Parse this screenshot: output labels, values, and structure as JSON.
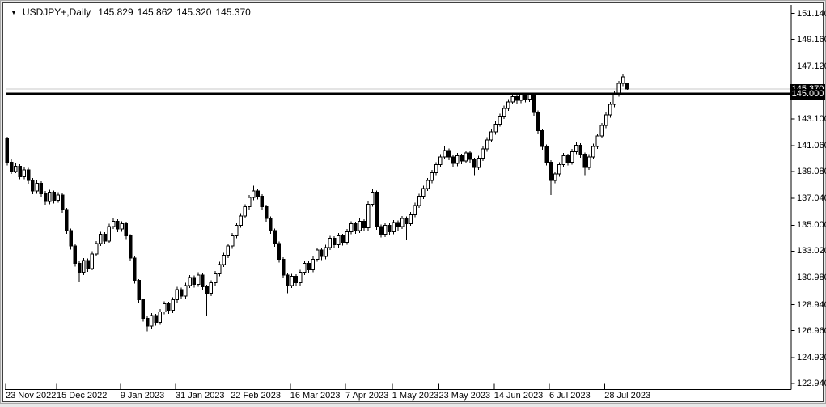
{
  "window": {
    "dropdown_icon": "▼",
    "symbol_timeframe": "USDJPY+,Daily",
    "open": "145.829",
    "high": "145.862",
    "low": "145.320",
    "close": "145.370"
  },
  "colors": {
    "background": "#ffffff",
    "foreground": "#000000",
    "axis_line": "#000000",
    "bid_line": "#c8c8c8",
    "hline": "#000000",
    "tag_bg": "#000000",
    "tag_text": "#ffffff",
    "bull_body": "#ffffff",
    "bear_body": "#000000",
    "window_border": "#3f3f3f"
  },
  "price_axis": {
    "bid_tag": "145.370",
    "hline_tag": "145.000",
    "labels": [
      "151.140",
      "149.160",
      "147.120",
      "143.100",
      "141.060",
      "139.080",
      "137.040",
      "135.000",
      "133.020",
      "130.980",
      "128.940",
      "126.960",
      "124.920",
      "122.940"
    ]
  },
  "time_axis": {
    "labels": [
      {
        "text": "23 Nov 2022",
        "bar": 0
      },
      {
        "text": "15 Dec 2022",
        "bar": 12
      },
      {
        "text": "9 Jan 2023",
        "bar": 27
      },
      {
        "text": "31 Jan 2023",
        "bar": 40
      },
      {
        "text": "22 Feb 2023",
        "bar": 53
      },
      {
        "text": "16 Mar 2023",
        "bar": 67
      },
      {
        "text": "7 Apr 2023",
        "bar": 80
      },
      {
        "text": "1 May 2023",
        "bar": 91
      },
      {
        "text": "23 May 2023",
        "bar": 102
      },
      {
        "text": "14 Jun 2023",
        "bar": 115
      },
      {
        "text": "6 Jul 2023",
        "bar": 128
      },
      {
        "text": "28 Jul 2023",
        "bar": 141
      }
    ]
  },
  "chart_data": {
    "type": "candlestick",
    "symbol": "USDJPY+",
    "timeframe": "Daily",
    "title": "USDJPY+,Daily",
    "current_ohlc": {
      "open": 145.829,
      "high": 145.862,
      "low": 145.32,
      "close": 145.37
    },
    "bid_price": 145.37,
    "hline_price": 145.0,
    "ylim": [
      122.94,
      151.14
    ],
    "y_tick_step": 2.02,
    "grid": false,
    "legend": false,
    "bars_ohlc": [
      [
        141.6,
        141.75,
        139.55,
        139.8
      ],
      [
        139.8,
        140.0,
        138.9,
        139.1
      ],
      [
        139.1,
        139.75,
        138.95,
        139.5
      ],
      [
        139.5,
        139.65,
        138.5,
        138.7
      ],
      [
        138.7,
        139.4,
        138.5,
        139.2
      ],
      [
        139.2,
        139.35,
        138.15,
        138.4
      ],
      [
        138.4,
        138.6,
        137.35,
        137.6
      ],
      [
        137.6,
        138.45,
        137.4,
        138.2
      ],
      [
        138.2,
        138.35,
        137.15,
        137.4
      ],
      [
        137.4,
        137.6,
        136.55,
        136.8
      ],
      [
        136.8,
        137.7,
        136.6,
        137.5
      ],
      [
        137.5,
        137.65,
        136.65,
        136.9
      ],
      [
        136.9,
        137.5,
        136.7,
        137.3
      ],
      [
        137.3,
        137.45,
        135.95,
        136.2
      ],
      [
        136.2,
        136.3,
        134.35,
        134.6
      ],
      [
        134.6,
        134.75,
        133.15,
        133.4
      ],
      [
        133.4,
        133.55,
        131.85,
        132.1
      ],
      [
        132.1,
        132.25,
        130.65,
        131.4
      ],
      [
        131.4,
        132.5,
        131.2,
        132.3
      ],
      [
        132.3,
        132.45,
        131.45,
        131.7
      ],
      [
        131.7,
        133.0,
        131.55,
        132.8
      ],
      [
        132.8,
        133.8,
        132.6,
        133.6
      ],
      [
        133.6,
        134.5,
        133.4,
        134.3
      ],
      [
        134.3,
        134.45,
        133.55,
        133.8
      ],
      [
        133.8,
        135.1,
        133.65,
        134.9
      ],
      [
        134.9,
        135.5,
        134.7,
        135.3
      ],
      [
        135.3,
        135.45,
        134.45,
        134.7
      ],
      [
        134.7,
        135.3,
        134.5,
        135.1
      ],
      [
        135.1,
        135.25,
        133.95,
        134.2
      ],
      [
        134.2,
        134.3,
        132.25,
        132.5
      ],
      [
        132.5,
        132.6,
        130.55,
        130.8
      ],
      [
        130.8,
        130.9,
        129.05,
        129.3
      ],
      [
        129.3,
        129.4,
        127.65,
        127.9
      ],
      [
        127.9,
        128.05,
        126.9,
        127.3
      ],
      [
        127.3,
        128.3,
        127.1,
        128.1
      ],
      [
        128.1,
        128.25,
        127.35,
        127.6
      ],
      [
        127.6,
        128.6,
        127.4,
        128.4
      ],
      [
        128.4,
        129.2,
        128.2,
        129.0
      ],
      [
        129.0,
        129.15,
        128.25,
        128.5
      ],
      [
        128.5,
        129.5,
        128.3,
        129.3
      ],
      [
        129.3,
        130.3,
        129.1,
        130.1
      ],
      [
        130.1,
        130.25,
        129.35,
        129.6
      ],
      [
        129.6,
        130.6,
        129.4,
        130.4
      ],
      [
        130.4,
        131.2,
        130.2,
        131.0
      ],
      [
        131.0,
        131.15,
        130.25,
        130.5
      ],
      [
        130.5,
        131.4,
        130.3,
        131.2
      ],
      [
        131.2,
        131.35,
        130.05,
        130.3
      ],
      [
        130.3,
        130.45,
        128.1,
        129.8
      ],
      [
        129.8,
        130.8,
        129.6,
        130.6
      ],
      [
        130.6,
        131.5,
        130.4,
        131.3
      ],
      [
        131.3,
        132.2,
        131.1,
        132.0
      ],
      [
        132.0,
        132.9,
        131.8,
        132.7
      ],
      [
        132.7,
        133.6,
        132.5,
        133.4
      ],
      [
        133.4,
        134.4,
        133.2,
        134.2
      ],
      [
        134.2,
        135.2,
        134.0,
        135.0
      ],
      [
        135.0,
        135.9,
        134.8,
        135.7
      ],
      [
        135.7,
        136.6,
        135.5,
        136.4
      ],
      [
        136.4,
        137.3,
        136.2,
        137.1
      ],
      [
        137.1,
        138.0,
        136.9,
        137.6
      ],
      [
        137.6,
        137.75,
        136.95,
        137.2
      ],
      [
        137.2,
        137.35,
        136.15,
        136.4
      ],
      [
        136.4,
        136.55,
        135.25,
        135.5
      ],
      [
        135.5,
        135.65,
        134.35,
        134.6
      ],
      [
        134.6,
        134.75,
        133.35,
        133.6
      ],
      [
        133.6,
        133.75,
        132.15,
        132.4
      ],
      [
        132.4,
        132.55,
        130.95,
        131.2
      ],
      [
        131.2,
        131.35,
        129.8,
        130.4
      ],
      [
        130.4,
        131.3,
        130.2,
        131.1
      ],
      [
        131.1,
        131.25,
        130.35,
        130.6
      ],
      [
        130.6,
        131.6,
        130.4,
        131.4
      ],
      [
        131.4,
        132.3,
        131.2,
        132.1
      ],
      [
        132.1,
        132.25,
        131.35,
        131.6
      ],
      [
        131.6,
        132.6,
        131.4,
        132.4
      ],
      [
        132.4,
        133.3,
        132.2,
        133.1
      ],
      [
        133.1,
        133.25,
        132.35,
        132.6
      ],
      [
        132.6,
        133.5,
        132.4,
        133.3
      ],
      [
        133.3,
        134.2,
        133.1,
        134.0
      ],
      [
        134.0,
        134.15,
        133.25,
        133.5
      ],
      [
        133.5,
        134.4,
        133.3,
        134.2
      ],
      [
        134.2,
        134.35,
        133.45,
        133.7
      ],
      [
        133.7,
        134.7,
        133.5,
        134.5
      ],
      [
        134.5,
        135.3,
        134.3,
        135.1
      ],
      [
        135.1,
        135.25,
        134.35,
        134.6
      ],
      [
        134.6,
        135.5,
        134.4,
        135.3
      ],
      [
        135.3,
        135.45,
        134.55,
        134.8
      ],
      [
        134.8,
        136.8,
        134.6,
        136.6
      ],
      [
        136.6,
        137.8,
        136.4,
        137.5
      ],
      [
        137.5,
        137.65,
        134.65,
        134.9
      ],
      [
        134.9,
        135.05,
        134.05,
        134.3
      ],
      [
        134.3,
        135.2,
        134.1,
        135.0
      ],
      [
        135.0,
        135.15,
        134.25,
        134.5
      ],
      [
        134.5,
        135.4,
        134.3,
        135.2
      ],
      [
        135.2,
        135.35,
        134.6,
        134.9
      ],
      [
        134.9,
        135.7,
        134.7,
        135.5
      ],
      [
        135.5,
        135.65,
        133.9,
        135.1
      ],
      [
        135.1,
        136.0,
        134.95,
        135.8
      ],
      [
        135.8,
        136.7,
        135.6,
        136.5
      ],
      [
        136.5,
        137.4,
        136.3,
        137.2
      ],
      [
        137.2,
        138.0,
        137.0,
        137.8
      ],
      [
        137.8,
        138.6,
        137.6,
        138.4
      ],
      [
        138.4,
        139.2,
        138.2,
        139.0
      ],
      [
        139.0,
        139.8,
        138.8,
        139.6
      ],
      [
        139.6,
        140.4,
        139.4,
        140.2
      ],
      [
        140.2,
        141.0,
        140.0,
        140.7
      ],
      [
        140.7,
        140.85,
        139.95,
        140.2
      ],
      [
        140.2,
        140.35,
        139.45,
        139.7
      ],
      [
        139.7,
        140.5,
        139.5,
        140.3
      ],
      [
        140.3,
        140.45,
        139.65,
        139.9
      ],
      [
        139.9,
        140.7,
        139.7,
        140.5
      ],
      [
        140.5,
        140.65,
        139.75,
        140.0
      ],
      [
        140.0,
        140.15,
        138.8,
        139.4
      ],
      [
        139.4,
        140.3,
        139.2,
        140.1
      ],
      [
        140.1,
        141.0,
        139.9,
        140.8
      ],
      [
        140.8,
        141.7,
        140.6,
        141.5
      ],
      [
        141.5,
        142.3,
        141.3,
        142.1
      ],
      [
        142.1,
        142.9,
        141.9,
        142.7
      ],
      [
        142.7,
        143.5,
        142.5,
        143.3
      ],
      [
        143.3,
        144.1,
        143.1,
        143.9
      ],
      [
        143.9,
        144.6,
        143.7,
        144.4
      ],
      [
        144.4,
        145.05,
        144.2,
        144.8
      ],
      [
        144.8,
        144.95,
        144.25,
        144.5
      ],
      [
        144.5,
        145.1,
        144.3,
        144.9
      ],
      [
        144.9,
        145.05,
        144.35,
        144.6
      ],
      [
        144.6,
        145.07,
        144.4,
        144.95
      ],
      [
        144.95,
        145.05,
        143.35,
        143.6
      ],
      [
        143.6,
        143.75,
        141.95,
        142.2
      ],
      [
        142.2,
        142.35,
        140.75,
        141.0
      ],
      [
        141.0,
        141.15,
        139.55,
        139.8
      ],
      [
        139.8,
        139.95,
        137.3,
        138.4
      ],
      [
        138.4,
        139.1,
        138.2,
        138.9
      ],
      [
        138.9,
        139.8,
        138.7,
        139.6
      ],
      [
        139.6,
        140.5,
        139.4,
        140.3
      ],
      [
        140.3,
        140.45,
        139.55,
        139.8
      ],
      [
        139.8,
        140.8,
        139.6,
        140.6
      ],
      [
        140.6,
        141.3,
        140.4,
        141.1
      ],
      [
        141.1,
        141.25,
        140.15,
        140.4
      ],
      [
        140.4,
        140.55,
        138.8,
        139.4
      ],
      [
        139.4,
        140.4,
        139.2,
        140.2
      ],
      [
        140.2,
        141.2,
        140.0,
        141.0
      ],
      [
        141.0,
        142.0,
        140.8,
        141.8
      ],
      [
        141.8,
        142.8,
        141.6,
        142.6
      ],
      [
        142.6,
        143.6,
        142.4,
        143.4
      ],
      [
        143.4,
        144.4,
        143.2,
        144.2
      ],
      [
        144.2,
        145.2,
        144.0,
        145.0
      ],
      [
        145.0,
        146.0,
        144.8,
        145.8
      ],
      [
        145.8,
        146.55,
        145.6,
        146.3
      ],
      [
        145.829,
        145.862,
        145.32,
        145.37
      ]
    ]
  }
}
